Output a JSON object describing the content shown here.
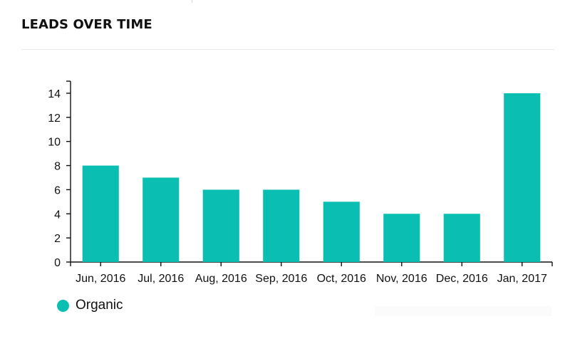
{
  "card": {
    "title": "LEADS OVER TIME"
  },
  "legend": {
    "items": [
      {
        "label": "Organic",
        "color": "#0abfb1"
      }
    ]
  },
  "colors": {
    "bar": "#0abfb1",
    "axis": "#111111",
    "divider": "#e8e8e8"
  },
  "chart_data": {
    "type": "bar",
    "title": "LEADS OVER TIME",
    "xlabel": "",
    "ylabel": "",
    "categories": [
      "Jun, 2016",
      "Jul, 2016",
      "Aug, 2016",
      "Sep, 2016",
      "Oct, 2016",
      "Nov, 2016",
      "Dec, 2016",
      "Jan, 2017"
    ],
    "series": [
      {
        "name": "Organic",
        "values": [
          8,
          7,
          6,
          6,
          5,
          4,
          4,
          14
        ]
      }
    ],
    "ylim": [
      0,
      15
    ],
    "yticks": [
      0,
      2,
      4,
      6,
      8,
      10,
      12,
      14
    ],
    "grid": false,
    "legend_position": "bottom-left"
  }
}
